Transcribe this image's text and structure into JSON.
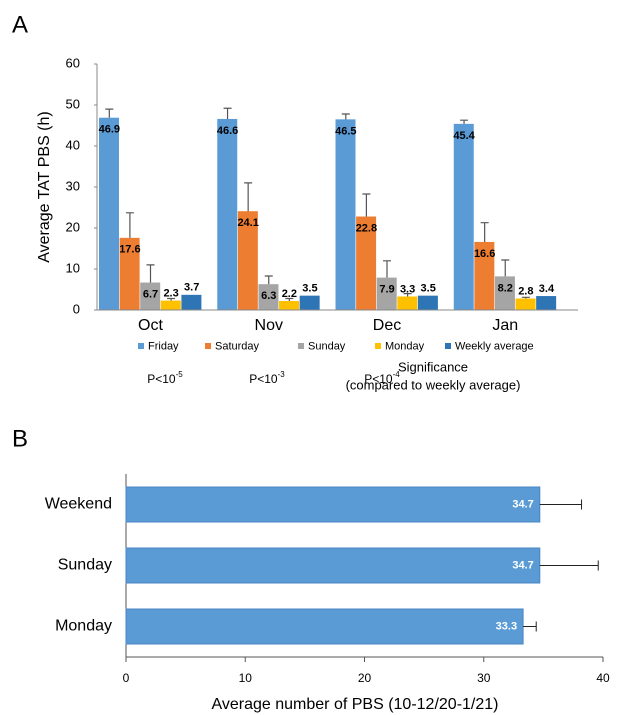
{
  "chart_data": [
    {
      "type": "bar",
      "panel_label": "A",
      "ylabel": "Average TAT PBS (h)",
      "categories": [
        "Oct",
        "Nov",
        "Dec",
        "Jan"
      ],
      "series": [
        {
          "name": "Friday",
          "color": "#5b9bd5",
          "values": [
            46.9,
            46.6,
            46.5,
            45.4
          ],
          "errors": [
            2.1,
            2.6,
            1.3,
            0.9
          ]
        },
        {
          "name": "Saturday",
          "color": "#ed7d31",
          "values": [
            17.6,
            24.1,
            22.8,
            16.6
          ],
          "errors": [
            6.1,
            6.9,
            5.5,
            4.7
          ]
        },
        {
          "name": "Sunday",
          "color": "#a5a5a5",
          "values": [
            6.7,
            6.3,
            7.9,
            8.2
          ],
          "errors": [
            4.3,
            2.0,
            4.1,
            4.0
          ]
        },
        {
          "name": "Monday",
          "color": "#ffc000",
          "values": [
            2.3,
            2.2,
            3.3,
            2.8
          ],
          "errors": [
            0.5,
            0.6,
            0.7,
            0.3
          ]
        },
        {
          "name": "Weekly average",
          "color": "#2e75b6",
          "values": [
            3.7,
            3.5,
            3.5,
            3.4
          ],
          "errors": [
            null,
            null,
            null,
            null
          ]
        }
      ],
      "ylim": [
        0,
        60
      ],
      "yticks": [
        0,
        10,
        20,
        30,
        40,
        50,
        60
      ],
      "legend": "bottom",
      "annotations": [
        {
          "text": "P<10",
          "exponent": "-5"
        },
        {
          "text": "P<10",
          "exponent": "-3"
        },
        {
          "text": "P<10",
          "exponent": "-4"
        }
      ],
      "annotation_title": [
        "Significance",
        "(compared to weekly average)"
      ]
    },
    {
      "type": "barh",
      "panel_label": "B",
      "xlabel": "Average number of PBS (10-12/20-1/21)",
      "categories": [
        "Weekend",
        "Sunday",
        "Monday"
      ],
      "values": [
        34.7,
        34.7,
        33.3
      ],
      "errors": [
        3.5,
        4.9,
        1.1
      ],
      "color": "#5b9bd5",
      "xlim": [
        0,
        40
      ],
      "xticks": [
        0,
        10,
        20,
        30,
        40
      ]
    }
  ]
}
